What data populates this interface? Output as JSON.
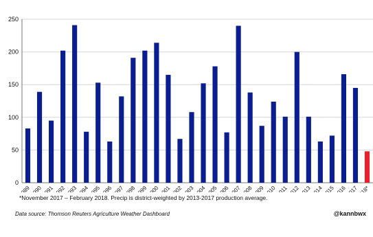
{
  "chart_data": {
    "type": "bar",
    "categories": [
      "1989",
      "1990",
      "1991",
      "1992",
      "1993",
      "1994",
      "1995",
      "1996",
      "1997",
      "1998",
      "1999",
      "2000",
      "2001",
      "2002",
      "2003",
      "2004",
      "2005",
      "2006",
      "2007",
      "2008",
      "2009",
      "2010",
      "2011",
      "2012",
      "2013",
      "2014",
      "2015",
      "2016",
      "2017",
      "2018*"
    ],
    "values": [
      83,
      139,
      95,
      202,
      241,
      78,
      153,
      63,
      132,
      191,
      202,
      214,
      165,
      67,
      108,
      152,
      178,
      77,
      240,
      138,
      87,
      124,
      101,
      200,
      101,
      63,
      72,
      166,
      145,
      48
    ],
    "colors": [
      "#0b1e8f",
      "#0b1e8f",
      "#0b1e8f",
      "#0b1e8f",
      "#0b1e8f",
      "#0b1e8f",
      "#0b1e8f",
      "#0b1e8f",
      "#0b1e8f",
      "#0b1e8f",
      "#0b1e8f",
      "#0b1e8f",
      "#0b1e8f",
      "#0b1e8f",
      "#0b1e8f",
      "#0b1e8f",
      "#0b1e8f",
      "#0b1e8f",
      "#0b1e8f",
      "#0b1e8f",
      "#0b1e8f",
      "#0b1e8f",
      "#0b1e8f",
      "#0b1e8f",
      "#0b1e8f",
      "#0b1e8f",
      "#0b1e8f",
      "#0b1e8f",
      "#0b1e8f",
      "#e8202a"
    ],
    "yticks": [
      "0",
      "50",
      "100",
      "150",
      "200",
      "250"
    ],
    "ylim": [
      0,
      250
    ],
    "grid": true,
    "title": "",
    "xlabel": "",
    "ylabel": ""
  },
  "footnote": "*November 2017 – February 2018. Precip is district-weighted by 2013-2017 production average.",
  "source": "Data source: Thomson Reuters Agriculture Weather Dashboard",
  "handle": "@kannbwx"
}
